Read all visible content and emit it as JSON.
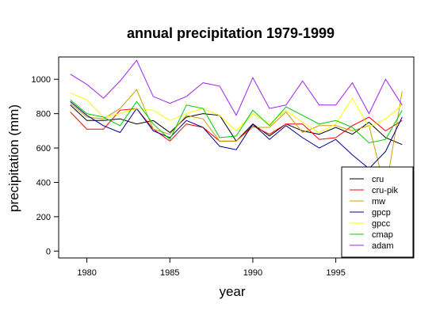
{
  "chart_data": {
    "type": "line",
    "title": "annual precipitation 1979-1999",
    "xlabel": "year",
    "ylabel": "precipitation (mm)",
    "xlim": [
      1978.3,
      1999.7
    ],
    "ylim": [
      -40,
      1130
    ],
    "xticks": [
      1980,
      1985,
      1990,
      1995
    ],
    "yticks": [
      0,
      200,
      400,
      600,
      800,
      1000
    ],
    "grid": false,
    "legend_position": "bottom-right",
    "x": [
      1979,
      1980,
      1981,
      1982,
      1983,
      1984,
      1985,
      1986,
      1987,
      1988,
      1989,
      1990,
      1991,
      1992,
      1993,
      1994,
      1995,
      1996,
      1997,
      1998,
      1999
    ],
    "series": [
      {
        "name": "cru",
        "color": "#000000",
        "values": [
          850,
          760,
          760,
          770,
          740,
          760,
          690,
          780,
          800,
          790,
          640,
          740,
          670,
          740,
          700,
          680,
          720,
          680,
          750,
          660,
          620
        ]
      },
      {
        "name": "cru-pik",
        "color": "#ff0000",
        "values": [
          810,
          710,
          710,
          820,
          830,
          710,
          640,
          740,
          720,
          640,
          640,
          730,
          680,
          740,
          740,
          650,
          660,
          730,
          780,
          700,
          760
        ]
      },
      {
        "name": "mw",
        "color": "#c8a000",
        "values": [
          860,
          780,
          770,
          830,
          940,
          710,
          680,
          790,
          770,
          640,
          640,
          720,
          720,
          810,
          690,
          730,
          730,
          700,
          730,
          350,
          930
        ]
      },
      {
        "name": "gpcp",
        "color": "#00008b",
        "values": [
          870,
          790,
          730,
          690,
          830,
          700,
          660,
          760,
          720,
          610,
          590,
          740,
          650,
          730,
          660,
          600,
          650,
          560,
          480,
          580,
          780
        ]
      },
      {
        "name": "gpcc",
        "color": "#ffff00",
        "values": [
          920,
          880,
          780,
          800,
          830,
          820,
          760,
          800,
          830,
          790,
          700,
          800,
          740,
          820,
          750,
          690,
          740,
          890,
          720,
          770,
          850
        ]
      },
      {
        "name": "cmap",
        "color": "#00cc00",
        "values": [
          880,
          800,
          780,
          730,
          870,
          740,
          650,
          850,
          830,
          660,
          670,
          820,
          730,
          840,
          790,
          740,
          760,
          720,
          630,
          650,
          820
        ]
      },
      {
        "name": "adam",
        "color": "#a020f0",
        "values": [
          1030,
          970,
          890,
          990,
          1110,
          900,
          860,
          900,
          980,
          960,
          790,
          1010,
          830,
          850,
          990,
          850,
          850,
          980,
          800,
          1000,
          850
        ]
      }
    ]
  }
}
